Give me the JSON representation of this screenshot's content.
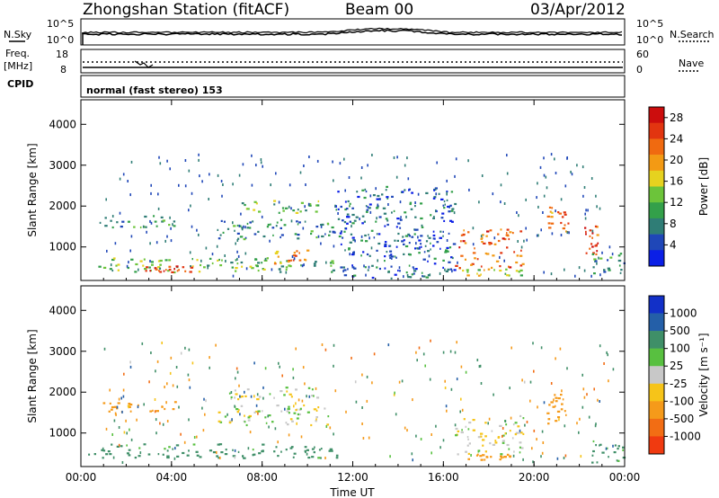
{
  "header": {
    "title": "Zhongshan Station (fitACF)",
    "beam": "Beam 00",
    "date": "03/Apr/2012"
  },
  "panels": {
    "sky": {
      "left_label": "N.Sky",
      "left_ticks": [
        "10^5",
        "10^0"
      ],
      "right_ticks": [
        "10^5",
        "10^0"
      ],
      "right_label": "N.Search"
    },
    "freq": {
      "left_label_1": "Freq.",
      "left_label_2": "[MHz]",
      "left_ticks": [
        "18",
        "8"
      ],
      "right_ticks": [
        "60",
        "0"
      ],
      "right_label": "Nave"
    },
    "cpid": {
      "left_label": "CPID",
      "text": "normal (fast stereo) 153"
    }
  },
  "chart_data": [
    {
      "type": "heatmap",
      "name": "power",
      "xlabel": "Time UT",
      "ylabel": "Slant Range [km]",
      "xlim": [
        0,
        24
      ],
      "ylim": [
        180,
        4600
      ],
      "x_ticks": [
        "00:00",
        "04:00",
        "08:00",
        "12:00",
        "16:00",
        "20:00",
        "00:00"
      ],
      "y_ticks": [
        1000,
        2000,
        3000,
        4000
      ],
      "colorbar": {
        "label": "Power [dB]",
        "ticks": [
          4,
          8,
          12,
          16,
          20,
          24,
          28
        ],
        "range": [
          0,
          30
        ],
        "colors": [
          "#0b1fe6",
          "#1f47b8",
          "#2f7d76",
          "#33a04a",
          "#6cc43a",
          "#e6d21f",
          "#f39a14",
          "#f06a10",
          "#e23510",
          "#cc0d0d"
        ]
      },
      "echo_regions": [
        {
          "t": [
            0.3,
            11.3
          ],
          "r": [
            400,
            750
          ],
          "value": 12
        },
        {
          "t": [
            2.8,
            5.0
          ],
          "r": [
            400,
            550
          ],
          "value": 26
        },
        {
          "t": [
            0.8,
            4.2
          ],
          "r": [
            1500,
            1800
          ],
          "value": 9
        },
        {
          "t": [
            6.5,
            10.5
          ],
          "r": [
            1850,
            2150
          ],
          "value": 12
        },
        {
          "t": [
            6.0,
            11.2
          ],
          "r": [
            1200,
            1700
          ],
          "value": 8
        },
        {
          "t": [
            8.5,
            10.0
          ],
          "r": [
            600,
            950
          ],
          "value": 20
        },
        {
          "t": [
            11.0,
            16.5
          ],
          "r": [
            250,
            2500
          ],
          "value": 6
        },
        {
          "t": [
            16.5,
            19.5
          ],
          "r": [
            500,
            1450
          ],
          "value": 23
        },
        {
          "t": [
            16.8,
            19.5
          ],
          "r": [
            300,
            500
          ],
          "value": 14
        },
        {
          "t": [
            20.5,
            21.5
          ],
          "r": [
            1200,
            2000
          ],
          "value": 22
        },
        {
          "t": [
            22.2,
            22.8
          ],
          "r": [
            800,
            1600
          ],
          "value": 24
        },
        {
          "t": [
            22.5,
            24.0
          ],
          "r": [
            300,
            900
          ],
          "value": 8
        }
      ]
    },
    {
      "type": "heatmap",
      "name": "velocity",
      "xlabel": "Time UT",
      "ylabel": "Slant Range [km]",
      "xlim": [
        0,
        24
      ],
      "ylim": [
        180,
        4600
      ],
      "x_ticks": [
        "00:00",
        "04:00",
        "08:00",
        "12:00",
        "16:00",
        "20:00",
        "00:00"
      ],
      "y_ticks": [
        1000,
        2000,
        3000,
        4000
      ],
      "colorbar": {
        "label": "Velocity [m s⁻¹]",
        "ticks": [
          "1000",
          "500",
          "100",
          "25",
          "-25",
          "-100",
          "-500",
          "-1000"
        ],
        "colors": [
          "#1230c8",
          "#245fa8",
          "#3f8f68",
          "#58c040",
          "#c8c8c8",
          "#f6c419",
          "#f59a1a",
          "#f26d14",
          "#f03a10"
        ]
      },
      "echo_regions": [
        {
          "t": [
            0.3,
            11.3
          ],
          "r": [
            400,
            750
          ],
          "value": 150
        },
        {
          "t": [
            0.8,
            4.2
          ],
          "r": [
            1500,
            1800
          ],
          "value": -150
        },
        {
          "t": [
            6.5,
            10.5
          ],
          "r": [
            1850,
            2150
          ],
          "value": 0
        },
        {
          "t": [
            6.0,
            11.2
          ],
          "r": [
            1200,
            1700
          ],
          "value": 0
        },
        {
          "t": [
            16.5,
            19.5
          ],
          "r": [
            500,
            1450
          ],
          "value": 0
        },
        {
          "t": [
            17.0,
            19.0
          ],
          "r": [
            350,
            500
          ],
          "value": -200
        },
        {
          "t": [
            20.5,
            21.5
          ],
          "r": [
            1200,
            2000
          ],
          "value": -300
        },
        {
          "t": [
            22.5,
            24.0
          ],
          "r": [
            300,
            900
          ],
          "value": 120
        }
      ]
    }
  ]
}
